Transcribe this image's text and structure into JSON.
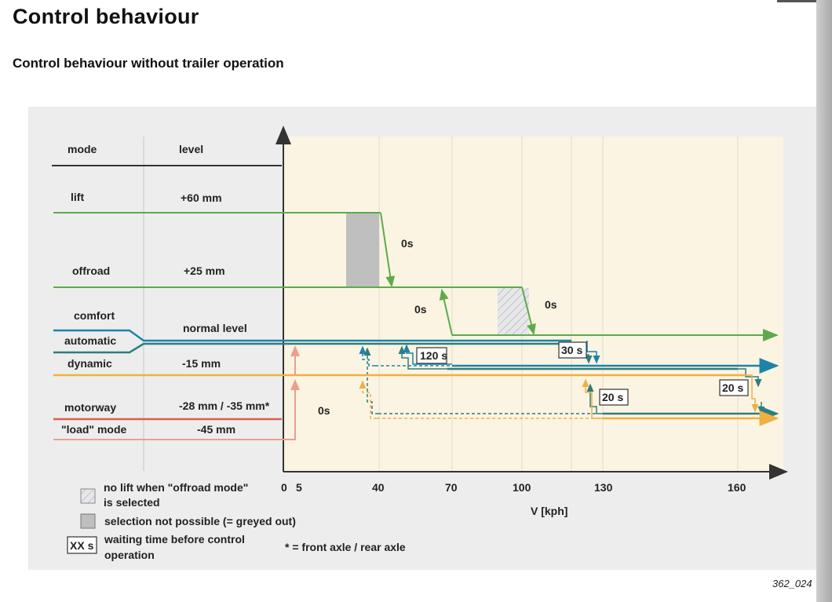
{
  "page": {
    "title": "Control behaviour",
    "subtitle": "Control behaviour without trailer operation",
    "figure_ref": "362_024"
  },
  "table": {
    "col_mode": "mode",
    "col_level": "level",
    "rows": [
      {
        "mode": "lift",
        "level": "+60 mm"
      },
      {
        "mode": "offroad",
        "level": "+25 mm"
      },
      {
        "mode": "comfort",
        "level": "normal level"
      },
      {
        "mode": "automatic",
        "level": ""
      },
      {
        "mode": "dynamic",
        "level": "-15 mm"
      },
      {
        "mode": "motorway",
        "level": "-28 mm / -35 mm*"
      },
      {
        "mode": "\"load\" mode",
        "level": "-45 mm"
      }
    ]
  },
  "axis": {
    "xlabel": "V [kph]",
    "ticks": [
      "0",
      "5",
      "40",
      "70",
      "100",
      "130",
      "160"
    ]
  },
  "annotations": {
    "t_lift": "0s",
    "t_offroad_up": "0s",
    "t_offroad_down": "0s",
    "t_load": "0s",
    "wait_120": "120 s",
    "wait_30": "30 s",
    "wait_20a": "20 s",
    "wait_20b": "20 s"
  },
  "legend": {
    "hatched": "no lift when \"offroad mode\" is selected",
    "hatched_line1": "no lift when \"offroad mode\"",
    "hatched_line2": "is selected",
    "grey": "selection not possible (= greyed out)",
    "box_sample": "XX s",
    "box_line1": "waiting time before control",
    "box_line2": "operation",
    "footnote": "* = front axle / rear axle"
  },
  "colors": {
    "lift_offroad": "#5daa4c",
    "comfort": "#1e83a8",
    "automatic": "#2e7d80",
    "dynamic": "#f0b040",
    "motorway": "#d9604a",
    "load": "#e8a090",
    "panel_bg": "#ededed",
    "plot_bg": "#fbf4e3",
    "grey_zone": "#bfbfbf"
  }
}
